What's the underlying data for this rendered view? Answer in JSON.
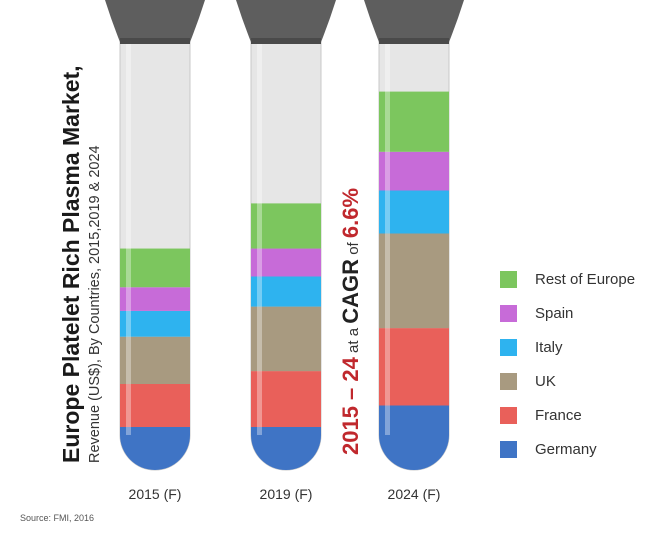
{
  "title": "Europe Platelet Rich Plasma Market,",
  "subtitle": "Revenue (US$), By Countries, 2015,2019 & 2024",
  "cagr": {
    "range": "2015 – 24",
    "at": "at a",
    "label": "CAGR",
    "of": "of",
    "value": "6.6%"
  },
  "source": "Source: FMI, 2016",
  "colors": {
    "Rest of Europe": "#7cc65e",
    "Spain": "#c76bd8",
    "Italy": "#2eb3ef",
    "UK": "#a89a80",
    "France": "#e9605a",
    "Germany": "#3f74c5"
  },
  "chart_data": {
    "type": "bar",
    "stacked": true,
    "categories": [
      "2015 (F)",
      "2019 (F)",
      "2024 (F)"
    ],
    "series": [
      {
        "name": "Germany",
        "values": [
          1.0,
          1.0,
          1.5
        ]
      },
      {
        "name": "France",
        "values": [
          1.0,
          1.3,
          1.8
        ]
      },
      {
        "name": "UK",
        "values": [
          1.1,
          1.5,
          2.2
        ]
      },
      {
        "name": "Italy",
        "values": [
          0.6,
          0.7,
          1.0
        ]
      },
      {
        "name": "Spain",
        "values": [
          0.55,
          0.65,
          0.9
        ]
      },
      {
        "name": "Rest of Europe",
        "values": [
          0.9,
          1.05,
          1.4
        ]
      }
    ],
    "legend": [
      "Rest of Europe",
      "Spain",
      "Italy",
      "UK",
      "France",
      "Germany"
    ],
    "legend_position": "right",
    "ylim": [
      0,
      9.8
    ],
    "grid": false
  }
}
